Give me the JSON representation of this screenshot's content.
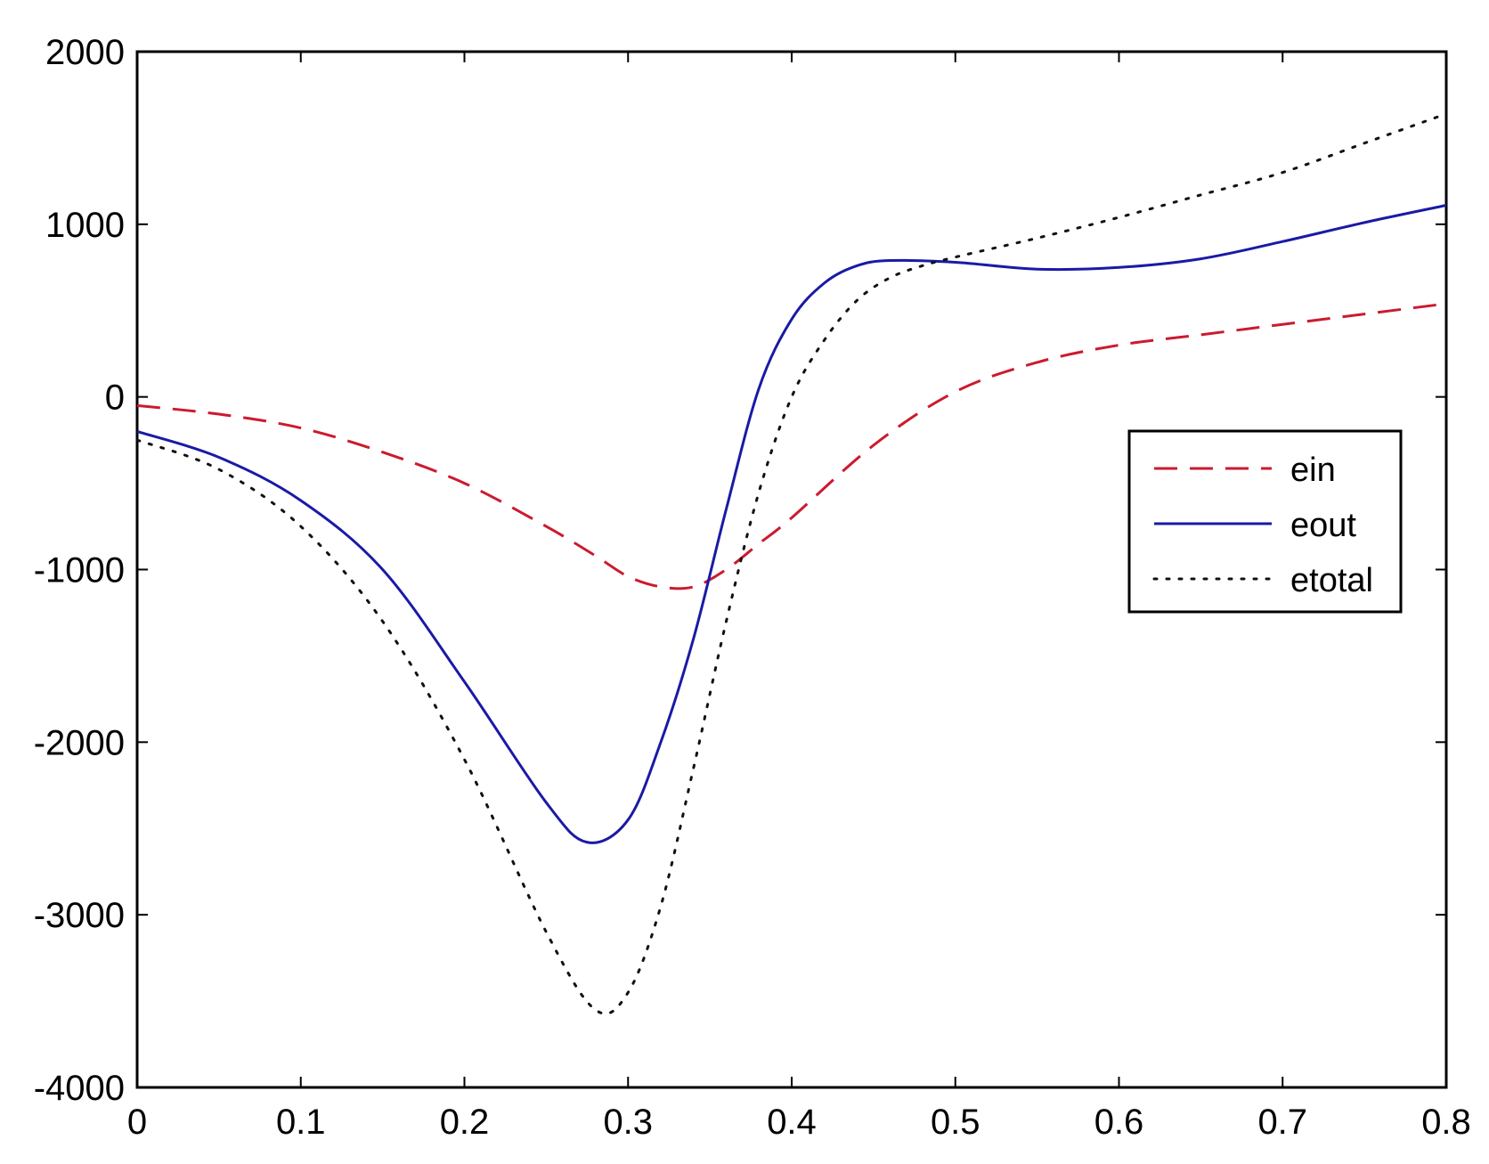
{
  "chart_data": {
    "type": "line",
    "title": "",
    "xlabel": "",
    "ylabel": "",
    "xlim": [
      0,
      0.8
    ],
    "ylim": [
      -4000,
      2000
    ],
    "xticks": [
      0,
      0.1,
      0.2,
      0.3,
      0.4,
      0.5,
      0.6,
      0.7,
      0.8
    ],
    "xtick_labels": [
      "0",
      "0.1",
      "0.2",
      "0.3",
      "0.4",
      "0.5",
      "0.6",
      "0.7",
      "0.8"
    ],
    "yticks": [
      2000,
      1000,
      0,
      -1000,
      -2000,
      -3000,
      -4000
    ],
    "ytick_labels": [
      "2000",
      "1000",
      "0",
      "-1000",
      "-2000",
      "-3000",
      "-4000"
    ],
    "grid": false,
    "legend_position": "right",
    "series": [
      {
        "name": "ein",
        "color": "#cc1a2e",
        "style": "dashed",
        "x": [
          0,
          0.05,
          0.1,
          0.15,
          0.2,
          0.25,
          0.28,
          0.3,
          0.32,
          0.34,
          0.36,
          0.38,
          0.4,
          0.45,
          0.5,
          0.55,
          0.6,
          0.65,
          0.7,
          0.75,
          0.8
        ],
        "y": [
          -50,
          -100,
          -180,
          -320,
          -500,
          -750,
          -920,
          -1040,
          -1100,
          -1100,
          -1000,
          -850,
          -700,
          -280,
          30,
          200,
          300,
          360,
          420,
          480,
          540
        ]
      },
      {
        "name": "eout",
        "color": "#1a1aa6",
        "style": "solid",
        "x": [
          0,
          0.05,
          0.1,
          0.15,
          0.2,
          0.25,
          0.275,
          0.3,
          0.32,
          0.34,
          0.36,
          0.38,
          0.4,
          0.42,
          0.44,
          0.46,
          0.5,
          0.55,
          0.6,
          0.65,
          0.7,
          0.75,
          0.8
        ],
        "y": [
          -200,
          -350,
          -600,
          -1000,
          -1650,
          -2350,
          -2580,
          -2450,
          -2000,
          -1400,
          -650,
          50,
          450,
          660,
          760,
          790,
          780,
          740,
          750,
          800,
          900,
          1010,
          1110
        ]
      },
      {
        "name": "etotal",
        "color": "#111111",
        "style": "dotted",
        "x": [
          0,
          0.05,
          0.1,
          0.15,
          0.2,
          0.25,
          0.28,
          0.3,
          0.32,
          0.34,
          0.36,
          0.38,
          0.4,
          0.42,
          0.44,
          0.46,
          0.48,
          0.5,
          0.55,
          0.6,
          0.65,
          0.7,
          0.75,
          0.8
        ],
        "y": [
          -250,
          -420,
          -750,
          -1300,
          -2100,
          -3100,
          -3550,
          -3450,
          -2950,
          -2150,
          -1300,
          -550,
          0,
          330,
          560,
          690,
          760,
          810,
          920,
          1040,
          1170,
          1300,
          1470,
          1640
        ]
      }
    ]
  }
}
